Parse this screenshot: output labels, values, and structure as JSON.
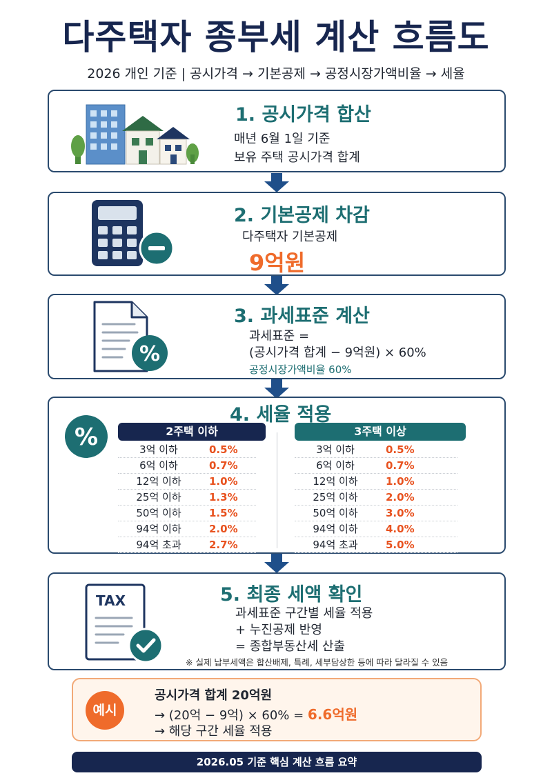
{
  "title": "다주택자 종부세 계산 흐름도",
  "subtitle": "2026 개인 기준  |  공시가격 → 기본공제 → 공정시장가액비율 → 세율",
  "colors": {
    "navy": "#17264f",
    "teal": "#1d6e72",
    "orange": "#ef6b2b",
    "rate_red": "#e8521f"
  },
  "steps": [
    {
      "title": "1. 공시가격 합산",
      "icon": "buildings-houses-icon",
      "lines": [
        "매년 6월 1일 기준",
        "보유 주택 공시가격 합계"
      ]
    },
    {
      "title": "2. 기본공제 차감",
      "icon": "calculator-minus-icon",
      "line": "다주택자 기본공제",
      "amount": "9억원"
    },
    {
      "title": "3. 과세표준 계산",
      "icon": "document-percent-icon",
      "lines": [
        "과세표준 =",
        "(공시가격 합계 − 9억원) × 60%"
      ],
      "note": "공정시장가액비율 60%"
    },
    {
      "title": "4. 세율 적용",
      "icon": "percent-icon"
    },
    {
      "title": "5. 최종 세액 확인",
      "icon": "tax-document-check-icon",
      "icon_text": "TAX",
      "lines": [
        "과세표준 구간별 세율 적용",
        "+ 누진공제 반영",
        "= 종합부동산세 산출"
      ],
      "footnote": "※ 실제 납부세액은 합산배제, 특례, 세부담상한 등에 따라 달라질 수 있음"
    }
  ],
  "rate_tables": [
    {
      "header": "2주택 이하",
      "rows": [
        {
          "bracket": "3억 이하",
          "rate": "0.5%"
        },
        {
          "bracket": "6억 이하",
          "rate": "0.7%"
        },
        {
          "bracket": "12억 이하",
          "rate": "1.0%"
        },
        {
          "bracket": "25억 이하",
          "rate": "1.3%"
        },
        {
          "bracket": "50억 이하",
          "rate": "1.5%"
        },
        {
          "bracket": "94억 이하",
          "rate": "2.0%"
        },
        {
          "bracket": "94억 초과",
          "rate": "2.7%"
        }
      ]
    },
    {
      "header": "3주택 이상",
      "rows": [
        {
          "bracket": "3억 이하",
          "rate": "0.5%"
        },
        {
          "bracket": "6억 이하",
          "rate": "0.7%"
        },
        {
          "bracket": "12억 이하",
          "rate": "1.0%"
        },
        {
          "bracket": "25억 이하",
          "rate": "2.0%"
        },
        {
          "bracket": "50억 이하",
          "rate": "3.0%"
        },
        {
          "bracket": "94억 이하",
          "rate": "4.0%"
        },
        {
          "bracket": "94억 초과",
          "rate": "5.0%"
        }
      ]
    }
  ],
  "example": {
    "badge": "예시",
    "line1": "공시가격 합계 20억원",
    "line2_prefix": "→ (20억 − 9억) × 60% = ",
    "line2_result": "6.6억원",
    "line3": "→ 해당 구간 세율 적용"
  },
  "footer": "2026.05 기준 핵심 계산 흐름 요약"
}
